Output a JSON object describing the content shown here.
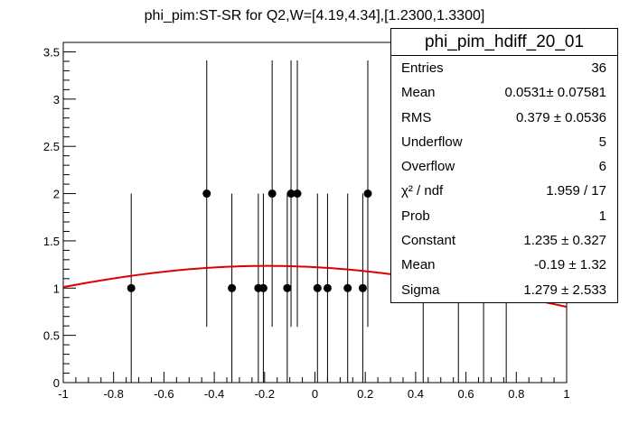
{
  "title": "phi_pim:ST-SR for Q2,W=[4.19,4.34],[1.2300,1.3300]",
  "stats": {
    "name": "phi_pim_hdiff_20_01",
    "rows": [
      {
        "key": "Entries",
        "value": "36"
      },
      {
        "key": "Mean",
        "value": "0.0531± 0.07581"
      },
      {
        "key": "RMS",
        "value": "0.379 ± 0.0536"
      },
      {
        "key": "Underflow",
        "value": "5"
      },
      {
        "key": "Overflow",
        "value": "6"
      },
      {
        "key": "χ² / ndf",
        "value": "1.959 / 17"
      },
      {
        "key": "Prob",
        "value": "1"
      },
      {
        "key": "Constant",
        "value": "1.235 ± 0.327"
      },
      {
        "key": "Mean",
        "value": "-0.19 ± 1.32"
      },
      {
        "key": "Sigma",
        "value": "1.279 ± 2.533"
      }
    ]
  },
  "chart_data": {
    "type": "scatter",
    "title": "phi_pim:ST-SR for Q2,W=[4.19,4.34],[1.2300,1.3300]",
    "xlabel": "",
    "ylabel": "",
    "xlim": [
      -1,
      1
    ],
    "ylim": [
      0,
      3.6
    ],
    "x_ticks": [
      "-1",
      "-0.8",
      "-0.6",
      "-0.4",
      "-0.2",
      "0",
      "0.2",
      "0.4",
      "0.6",
      "0.8",
      "1"
    ],
    "y_ticks": [
      "0",
      "0.5",
      "1",
      "1.5",
      "2",
      "2.5",
      "3",
      "3.5"
    ],
    "points": [
      {
        "x": -0.73,
        "y": 1,
        "err": 1.0
      },
      {
        "x": -0.43,
        "y": 2,
        "err": 1.41
      },
      {
        "x": -0.33,
        "y": 1,
        "err": 1.0
      },
      {
        "x": -0.225,
        "y": 1,
        "err": 1.0
      },
      {
        "x": -0.205,
        "y": 1,
        "err": 1.0
      },
      {
        "x": -0.17,
        "y": 2,
        "err": 1.41
      },
      {
        "x": -0.11,
        "y": 1,
        "err": 1.0
      },
      {
        "x": -0.095,
        "y": 2,
        "err": 1.41
      },
      {
        "x": -0.07,
        "y": 2,
        "err": 1.41
      },
      {
        "x": 0.01,
        "y": 1,
        "err": 1.0
      },
      {
        "x": 0.05,
        "y": 1,
        "err": 1.0
      },
      {
        "x": 0.13,
        "y": 1,
        "err": 1.0
      },
      {
        "x": 0.19,
        "y": 1,
        "err": 1.0
      },
      {
        "x": 0.21,
        "y": 2,
        "err": 1.41
      },
      {
        "x": 0.43,
        "y": 0,
        "err": 1.0
      },
      {
        "x": 0.57,
        "y": 0,
        "err": 1.0
      },
      {
        "x": 0.67,
        "y": 0,
        "err": 1.0
      },
      {
        "x": 0.76,
        "y": 0,
        "err": 1.0
      }
    ],
    "fit": {
      "type": "gaus",
      "constant": 1.235,
      "mean": -0.19,
      "sigma": 1.279,
      "color": "#dd0000"
    },
    "marker_color": "#000000",
    "grid": false
  }
}
